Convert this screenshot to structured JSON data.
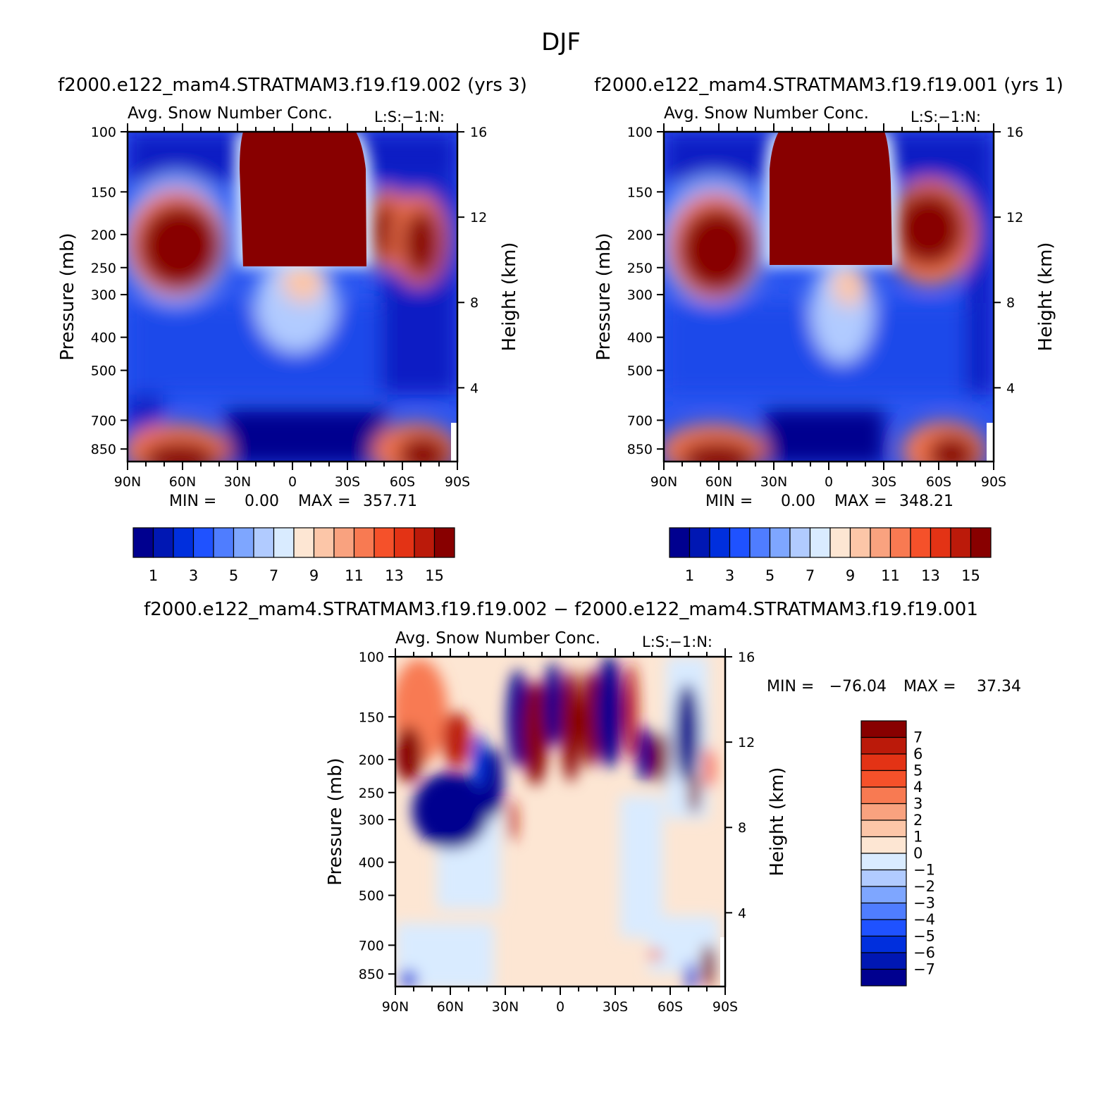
{
  "figure": {
    "title": "DJF"
  },
  "chart_data": [
    {
      "type": "heatmap",
      "id": "case1",
      "title": "f2000.e122_mam4.STRATMAM3.f19.f19.002 (yrs 3)",
      "subtitle": "Avg. Snow Number Conc.",
      "subtitle_right": "L:S:-1:N:",
      "xlabel": "",
      "ylabel": "Pressure (mb)",
      "ylabel_right": "Height (km)",
      "x_ticks": [
        "90N",
        "60N",
        "30N",
        "0",
        "30S",
        "60S",
        "90S"
      ],
      "x_range": [
        90,
        -90
      ],
      "y_ticks": [
        100,
        150,
        200,
        250,
        300,
        400,
        500,
        700,
        850
      ],
      "y_range_mb": [
        100,
        925
      ],
      "height_ticks_km": [
        16,
        12,
        8,
        4
      ],
      "min_label": "MIN =",
      "min_value": "0.00",
      "max_label": "MAX =",
      "max_value": "357.71",
      "colorbar": {
        "orientation": "horizontal",
        "levels": [
          1,
          2,
          3,
          4,
          5,
          6,
          7,
          8,
          9,
          10,
          11,
          12,
          13,
          14,
          15
        ],
        "labels": [
          "1",
          "3",
          "5",
          "7",
          "9",
          "11",
          "13",
          "15"
        ],
        "colors": [
          "#00008f",
          "#0017b3",
          "#002fdd",
          "#1f52ff",
          "#4f7dff",
          "#7ea6ff",
          "#b1cbff",
          "#d9ebff",
          "#fde6d3",
          "#fcc6a8",
          "#f9a27f",
          "#f87a52",
          "#f5512a",
          "#e33315",
          "#bb1a0a",
          "#880000"
        ]
      },
      "features": [
        {
          "lat": 0,
          "p": 150,
          "value": 16
        },
        {
          "lat": 65,
          "p": 230,
          "value": 16
        },
        {
          "lat": -42,
          "p": 200,
          "value": 16
        },
        {
          "lat": -62,
          "p": 240,
          "value": 16
        },
        {
          "lat": 62,
          "p": 860,
          "value": 15
        },
        {
          "lat": -70,
          "p": 860,
          "value": 15
        },
        {
          "lat": 0,
          "p": 320,
          "value": 8
        },
        {
          "lat": 0,
          "p": 800,
          "value": 0
        }
      ]
    },
    {
      "type": "heatmap",
      "id": "case2",
      "title": "f2000.e122_mam4.STRATMAM3.f19.f19.001 (yrs 1)",
      "subtitle": "Avg. Snow Number Conc.",
      "subtitle_right": "L:S:-1:N:",
      "xlabel": "",
      "ylabel": "Pressure (mb)",
      "ylabel_right": "Height (km)",
      "x_ticks": [
        "90N",
        "60N",
        "30N",
        "0",
        "30S",
        "60S",
        "90S"
      ],
      "x_range": [
        90,
        -90
      ],
      "y_ticks": [
        100,
        150,
        200,
        250,
        300,
        400,
        500,
        700,
        850
      ],
      "y_range_mb": [
        100,
        925
      ],
      "height_ticks_km": [
        16,
        12,
        8,
        4
      ],
      "min_label": "MIN =",
      "min_value": "0.00",
      "max_label": "MAX =",
      "max_value": "348.21",
      "colorbar": {
        "orientation": "horizontal",
        "levels": [
          1,
          2,
          3,
          4,
          5,
          6,
          7,
          8,
          9,
          10,
          11,
          12,
          13,
          14,
          15
        ],
        "labels": [
          "1",
          "3",
          "5",
          "7",
          "9",
          "11",
          "13",
          "15"
        ],
        "colors": [
          "#00008f",
          "#0017b3",
          "#002fdd",
          "#1f52ff",
          "#4f7dff",
          "#7ea6ff",
          "#b1cbff",
          "#d9ebff",
          "#fde6d3",
          "#fcc6a8",
          "#f9a27f",
          "#f87a52",
          "#f5512a",
          "#e33315",
          "#bb1a0a",
          "#880000"
        ]
      },
      "features": [
        {
          "lat": 0,
          "p": 150,
          "value": 16
        },
        {
          "lat": 65,
          "p": 230,
          "value": 16
        },
        {
          "lat": -42,
          "p": 200,
          "value": 16
        },
        {
          "lat": -62,
          "p": 220,
          "value": 16
        },
        {
          "lat": 62,
          "p": 860,
          "value": 15
        },
        {
          "lat": -70,
          "p": 860,
          "value": 15
        },
        {
          "lat": -10,
          "p": 320,
          "value": 9
        },
        {
          "lat": 0,
          "p": 800,
          "value": 0
        }
      ]
    },
    {
      "type": "heatmap",
      "id": "diff",
      "title": "f2000.e122_mam4.STRATMAM3.f19.f19.002 - f2000.e122_mam4.STRATMAM3.f19.f19.001",
      "subtitle": "Avg. Snow Number Conc.",
      "subtitle_right": "L:S:-1:N:",
      "xlabel": "",
      "ylabel": "Pressure (mb)",
      "ylabel_right": "Height (km)",
      "x_ticks": [
        "90N",
        "60N",
        "30N",
        "0",
        "30S",
        "60S",
        "90S"
      ],
      "x_range": [
        90,
        -90
      ],
      "y_ticks": [
        100,
        150,
        200,
        250,
        300,
        400,
        500,
        700,
        850
      ],
      "y_range_mb": [
        100,
        925
      ],
      "height_ticks_km": [
        16,
        12,
        8,
        4
      ],
      "min_label": "MIN =",
      "min_value": "-76.04",
      "max_label": "MAX =",
      "max_value": "37.34",
      "colorbar": {
        "orientation": "vertical",
        "levels": [
          -7,
          -6,
          -5,
          -4,
          -3,
          -2,
          -1,
          0,
          1,
          2,
          3,
          4,
          5,
          6,
          7
        ],
        "labels": [
          "7",
          "6",
          "5",
          "4",
          "3",
          "2",
          "1",
          "0",
          "-1",
          "-2",
          "-3",
          "-4",
          "-5",
          "-6",
          "-7"
        ],
        "colors": [
          "#00008f",
          "#0017b3",
          "#002fdd",
          "#1f52ff",
          "#4f7dff",
          "#7ea6ff",
          "#b1cbff",
          "#d9ebff",
          "#fde6d3",
          "#fcc6a8",
          "#f9a27f",
          "#f87a52",
          "#f5512a",
          "#e33315",
          "#bb1a0a",
          "#880000"
        ]
      },
      "features": [
        {
          "lat": 72,
          "p": 180,
          "value": 7
        },
        {
          "lat": 55,
          "p": 290,
          "value": -8
        },
        {
          "lat": 20,
          "p": 170,
          "value": -8
        },
        {
          "lat": 8,
          "p": 170,
          "value": 8
        },
        {
          "lat": -25,
          "p": 160,
          "value": -8
        },
        {
          "lat": -42,
          "p": 200,
          "value": 8
        },
        {
          "lat": -68,
          "p": 170,
          "value": -8
        },
        {
          "lat": 0,
          "p": 500,
          "value": 0.5
        },
        {
          "lat": 60,
          "p": 500,
          "value": -0.5
        }
      ]
    }
  ]
}
